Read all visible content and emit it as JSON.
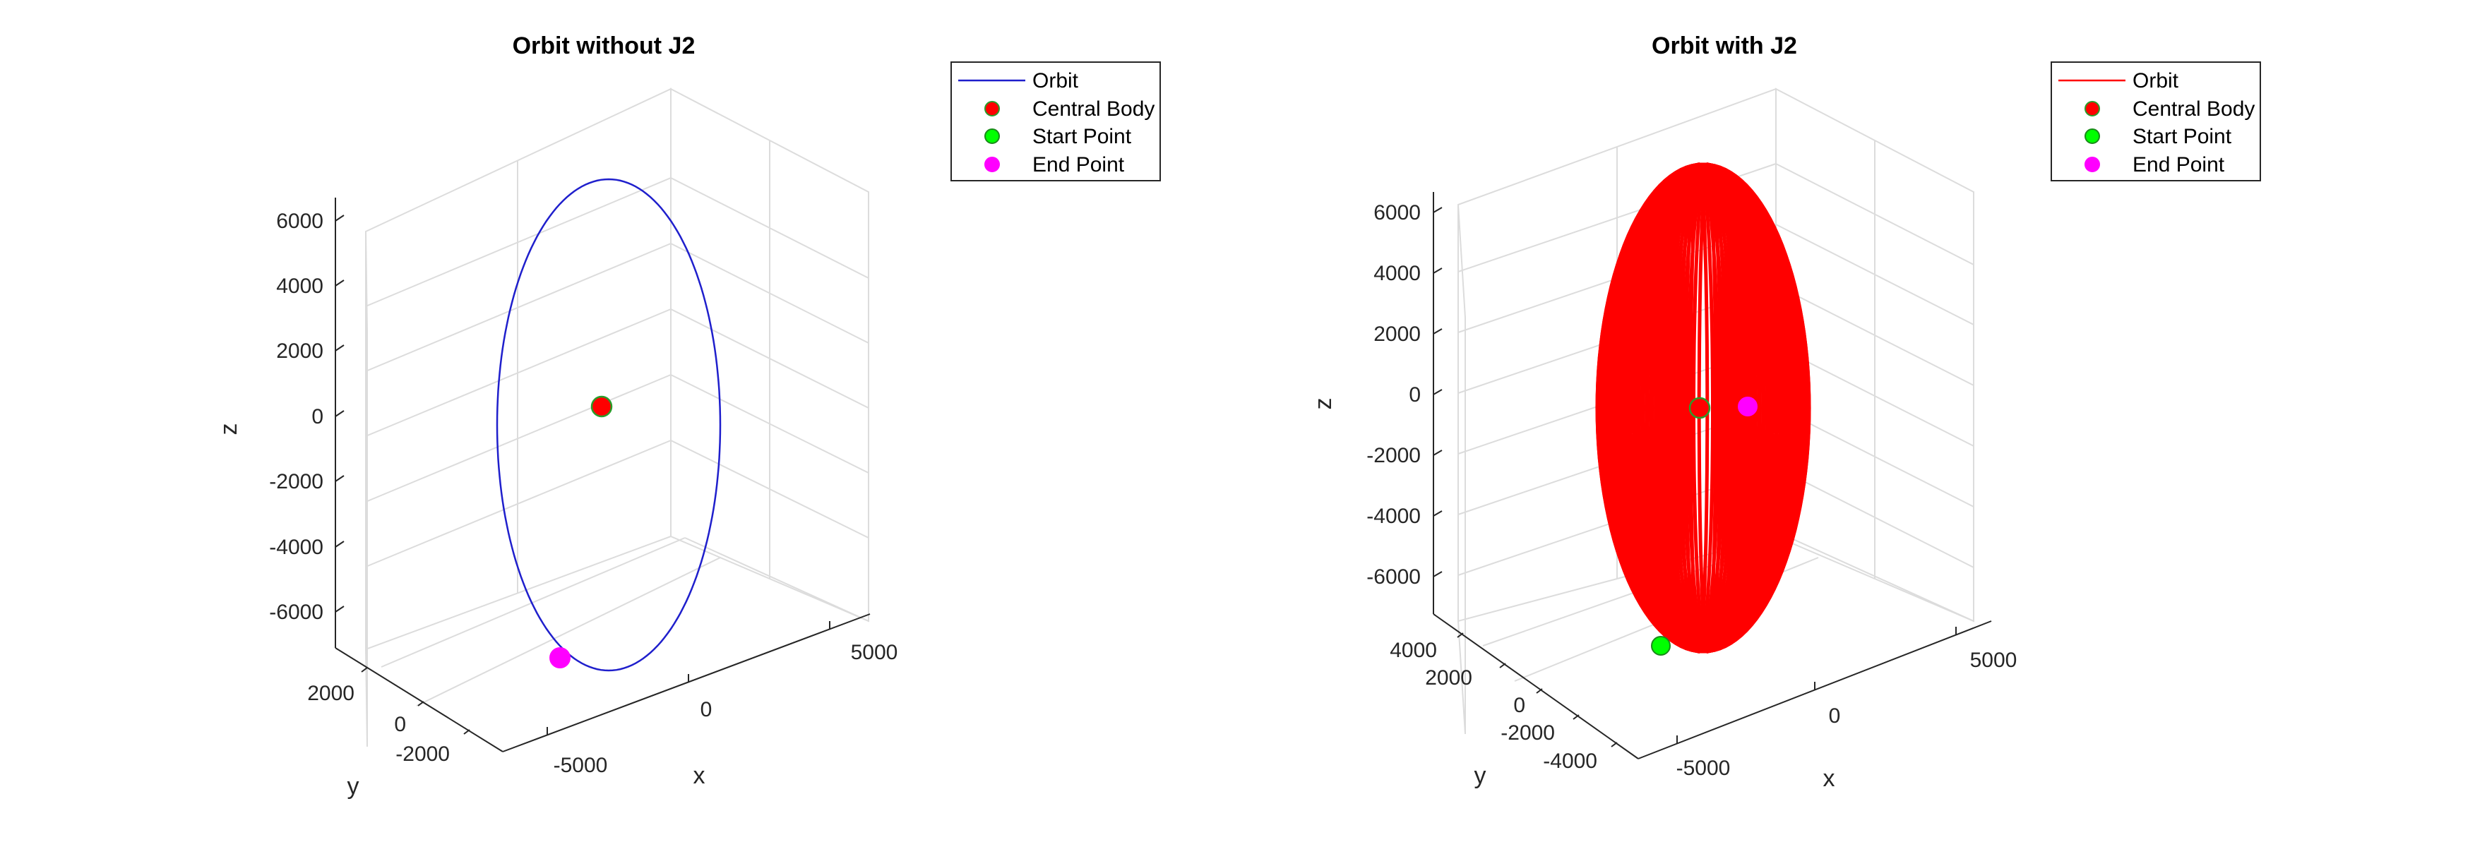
{
  "chart_data": [
    {
      "type": "line",
      "title": "Orbit without J2",
      "xlabel": "x",
      "ylabel": "y",
      "zlabel": "z",
      "xticks": [
        "-5000",
        "0",
        "5000"
      ],
      "yticks": [
        "2000",
        "0",
        "-2000"
      ],
      "zticks": [
        "6000",
        "4000",
        "2000",
        "0",
        "-2000",
        "-4000",
        "-6000"
      ],
      "xlim": [
        -7000,
        7000
      ],
      "ylim": [
        -3500,
        3500
      ],
      "zlim": [
        -7000,
        7000
      ],
      "legend_position": "top-right",
      "legend": [
        "Orbit",
        "Central Body",
        "Start Point",
        "End Point"
      ],
      "orbit_color": "#1f1fcc",
      "central_body": {
        "x": 0,
        "y": 0,
        "z": 0,
        "color": "#ff0000"
      },
      "start_point": {
        "x": -1300,
        "y": 1200,
        "z": -6900,
        "color": "#00ff00"
      },
      "end_point": {
        "x": -1300,
        "y": 1200,
        "z": -6900,
        "color": "#ff00ff"
      },
      "orbit_semi_major_axis": 7000,
      "precession_sweep_deg": 0
    },
    {
      "type": "line",
      "title": "Orbit with J2",
      "xlabel": "x",
      "ylabel": "y",
      "zlabel": "z",
      "xticks": [
        "-5000",
        "0",
        "5000"
      ],
      "yticks": [
        "4000",
        "2000",
        "0",
        "-2000",
        "-4000"
      ],
      "zticks": [
        "6000",
        "4000",
        "2000",
        "0",
        "-2000",
        "-4000",
        "-6000"
      ],
      "xlim": [
        -7000,
        7000
      ],
      "ylim": [
        -5000,
        5000
      ],
      "zlim": [
        -7000,
        7000
      ],
      "legend_position": "top-right",
      "legend": [
        "Orbit",
        "Central Body",
        "Start Point",
        "End Point"
      ],
      "orbit_color": "#ff0000",
      "central_body": {
        "x": 0,
        "y": 0,
        "z": 0,
        "color": "#ff0000"
      },
      "start_point": {
        "x": -1300,
        "y": 1200,
        "z": -6900,
        "color": "#00ff00"
      },
      "end_point": {
        "x": 500,
        "y": -500,
        "z": 0,
        "color": "#ff00ff"
      },
      "orbit_semi_major_axis": 7000,
      "precession_sweep_deg": 52
    }
  ]
}
